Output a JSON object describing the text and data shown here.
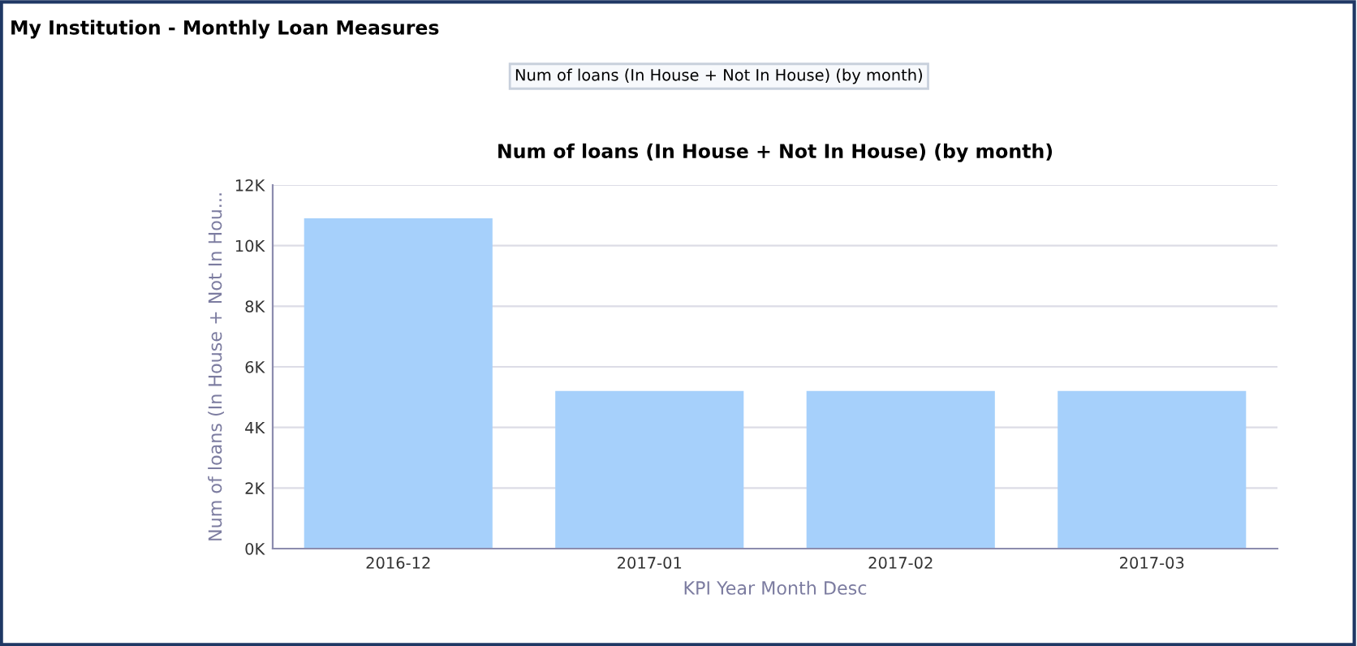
{
  "chart_data": {
    "type": "bar",
    "title": "My Institution - Monthly Loan Measures",
    "subtitle": "Num of loans (In House + Not In House) (by month)",
    "annotations": [
      "Num of loans (In House + Not In House) (by month)"
    ],
    "xlabel": "KPI Year Month Desc",
    "ylabel": "Num of loans (In House + Not In Hou...",
    "categories": [
      "2016-12",
      "2017-01",
      "2017-02",
      "2017-03"
    ],
    "values": [
      10900,
      5200,
      5200,
      5200
    ],
    "color": "#a6d0fb",
    "ylim": [
      0,
      12000
    ],
    "yticks": [
      {
        "value": 0,
        "label": "0K"
      },
      {
        "value": 2000,
        "label": "2K"
      },
      {
        "value": 4000,
        "label": "4K"
      },
      {
        "value": 6000,
        "label": "6K"
      },
      {
        "value": 8000,
        "label": "8K"
      },
      {
        "value": 10000,
        "label": "10K"
      },
      {
        "value": 12000,
        "label": "12K"
      }
    ],
    "grid": "y",
    "legend": false
  }
}
